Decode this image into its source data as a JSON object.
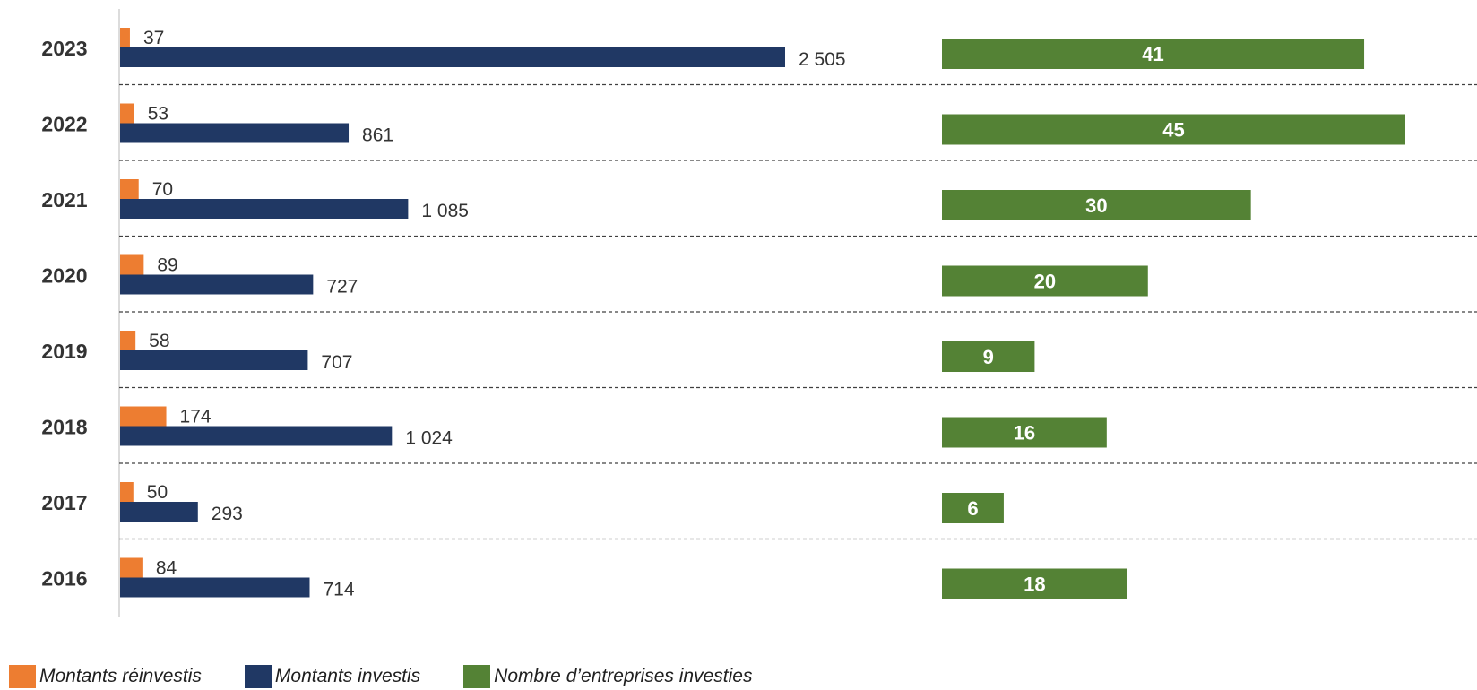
{
  "chart_data": {
    "type": "bar",
    "orientation": "horizontal",
    "categories": [
      "2023",
      "2022",
      "2021",
      "2020",
      "2019",
      "2018",
      "2017",
      "2016"
    ],
    "series": [
      {
        "name": "Montants réinvestis",
        "color": "#ED7D31",
        "values": [
          37,
          53,
          70,
          89,
          58,
          174,
          50,
          84
        ],
        "labels": [
          "37",
          "53",
          "70",
          "89",
          "58",
          "174",
          "50",
          "84"
        ]
      },
      {
        "name": "Montants investis",
        "color": "#203864",
        "values": [
          2505,
          861,
          1085,
          727,
          707,
          1024,
          293,
          714
        ],
        "labels": [
          "2 505",
          "861",
          "1 085",
          "727",
          "707",
          "1 024",
          "293",
          "714"
        ]
      },
      {
        "name": "Nombre d’entreprises investies",
        "color": "#548235",
        "values": [
          41,
          45,
          30,
          20,
          9,
          16,
          6,
          18
        ],
        "labels": [
          "41",
          "45",
          "30",
          "20",
          "9",
          "16",
          "6",
          "18"
        ]
      }
    ],
    "gridlines": "dashed horizontal separators",
    "legend_position": "bottom-left",
    "xlim_amounts": [
      0,
      2770
    ],
    "xlim_count": [
      0,
      45
    ]
  }
}
